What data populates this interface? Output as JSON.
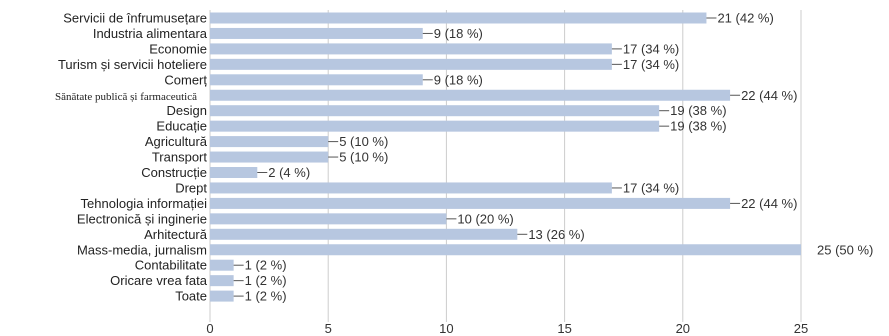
{
  "chart_data": {
    "type": "bar",
    "orientation": "horizontal",
    "categories": [
      "Servicii de înfrumusețare",
      "Industria alimentara",
      "Economie",
      "Turism și servicii hoteliere",
      "Comerț",
      "Sănătate publică și farmaceutică",
      "Design",
      "Educație",
      "Agricultură",
      "Transport",
      "Construcție",
      "Drept",
      "Tehnologia informației",
      "Electronică și inginerie",
      "Arhitectură",
      "Mass-media, jurnalism",
      "Contabilitate",
      "Oricare vrea fata",
      "Toate"
    ],
    "values": [
      21,
      9,
      17,
      17,
      9,
      22,
      19,
      19,
      5,
      5,
      2,
      17,
      22,
      10,
      13,
      25,
      1,
      1,
      1
    ],
    "value_labels": [
      "21 (42 %)",
      "9 (18 %)",
      "17 (34 %)",
      "17 (34 %)",
      "9 (18 %)",
      "22 (44 %)",
      "19 (38 %)",
      "19 (38 %)",
      "5 (10 %)",
      "5 (10 %)",
      "2 (4 %)",
      "17 (34 %)",
      "22 (44 %)",
      "10 (20 %)",
      "13 (26 %)",
      "25 (50 %)",
      "1 (2 %)",
      "1 (2 %)",
      "1 (2 %)"
    ],
    "xlim": [
      0,
      25
    ],
    "x_ticks": [
      "0",
      "5",
      "10",
      "15",
      "20",
      "25"
    ],
    "grid": true,
    "bar_color": "#b7c7e0",
    "grid_color": "#cccccc"
  }
}
